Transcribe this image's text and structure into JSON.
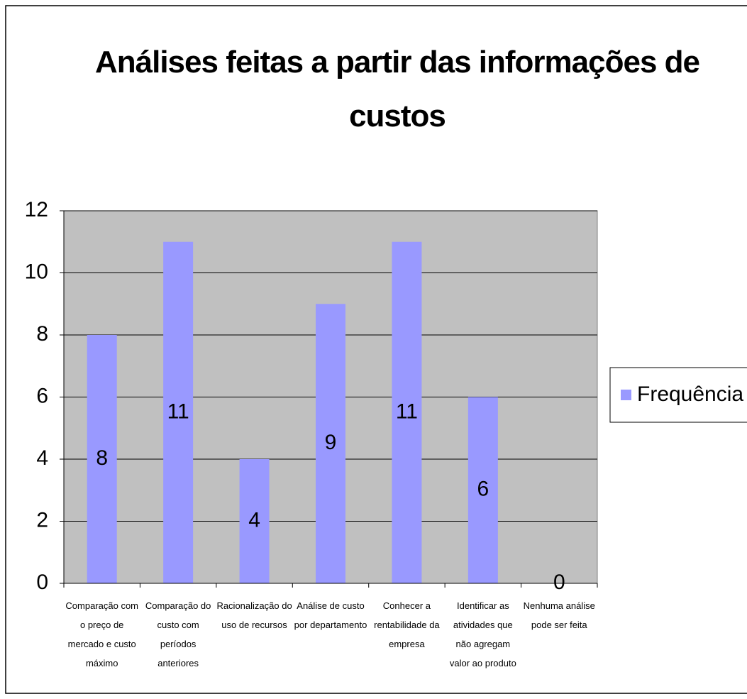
{
  "chart_data": {
    "type": "bar",
    "title": "Análises feitas a partir das informações de custos",
    "categories": [
      "Comparação com o preço de mercado e custo máximo",
      "Comparação do custo com períodos anteriores",
      "Racionalização do uso de recursos",
      "Análise de custo por departamento",
      "Conhecer a rentabilidade da empresa",
      "Identificar as atividades que não agregam valor ao produto",
      "Nenhuma análise pode ser feita"
    ],
    "series": [
      {
        "name": "Frequência",
        "color": "#9999ff",
        "values": [
          8,
          11,
          4,
          9,
          11,
          6,
          0
        ]
      }
    ],
    "ylim": [
      0,
      12
    ],
    "yticks": [
      0,
      2,
      4,
      6,
      8,
      10,
      12
    ],
    "grid": true,
    "legend": "right",
    "plot_background": "#c0c0c0"
  }
}
